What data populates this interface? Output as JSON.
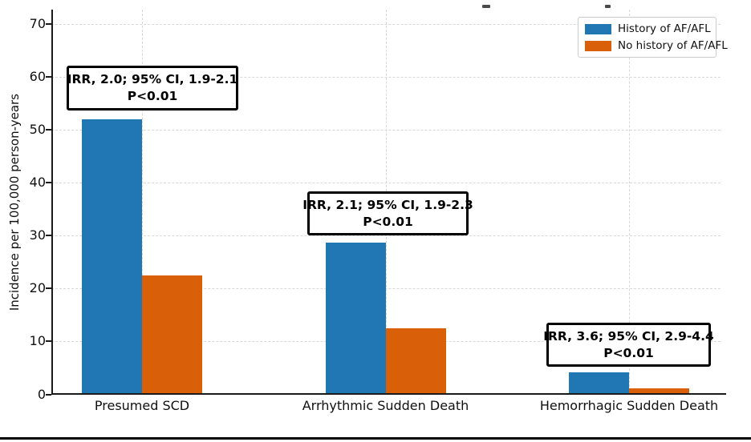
{
  "chart_data": {
    "type": "bar",
    "title": "",
    "xlabel": "",
    "ylabel": "Incidence per 100,000 person-years",
    "categories": [
      "Presumed SCD",
      "Arrhythmic Sudden Death",
      "Hemorrhagic Sudden Death"
    ],
    "series": [
      {
        "name": "History of AF/AFL",
        "color": "#2077b4",
        "values": [
          52.0,
          28.6,
          4.1
        ]
      },
      {
        "name": "No history of AF/AFL",
        "color": "#d95f08",
        "values": [
          22.4,
          12.5,
          1.1
        ]
      }
    ],
    "annotations": [
      {
        "line1": "IRR, 2.0; 95% CI, 1.9-2.1",
        "line2": "P<0.01"
      },
      {
        "line1": "IRR, 2.1; 95% CI, 1.9-2.3",
        "line2": "P<0.01"
      },
      {
        "line1": "IRR, 3.6; 95% CI, 2.9-4.4",
        "line2": "P<0.01"
      }
    ],
    "yticks": [
      0,
      10,
      20,
      30,
      40,
      50,
      60,
      70
    ],
    "ylim": [
      0,
      72.7
    ],
    "grid": "horizontal dashed gridlines at each 10 units; vertical dashed gridline at each category center",
    "legend_position": "upper right"
  },
  "colors": {
    "background": "#ffffff",
    "axis": "#1a1a1a",
    "grid": "#d8d8d8",
    "annotation_border": "#000000",
    "legend_border": "#cccccc",
    "bottom_rule": "#000000",
    "text": "#111111"
  }
}
